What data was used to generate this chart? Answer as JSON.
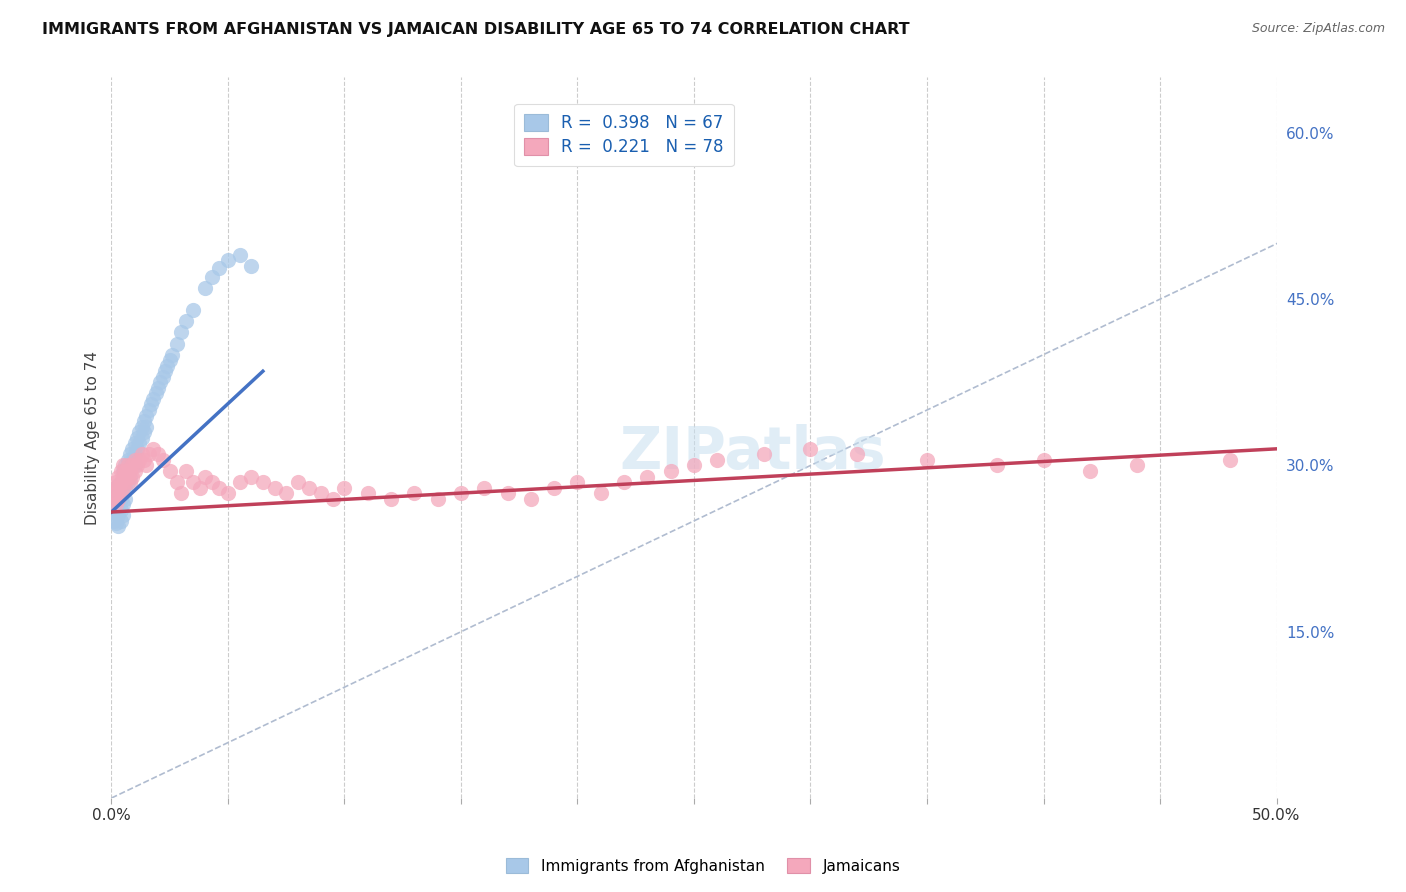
{
  "title": "IMMIGRANTS FROM AFGHANISTAN VS JAMAICAN DISABILITY AGE 65 TO 74 CORRELATION CHART",
  "source": "Source: ZipAtlas.com",
  "ylabel": "Disability Age 65 to 74",
  "xlim": [
    0.0,
    0.5
  ],
  "ylim": [
    0.0,
    0.65
  ],
  "yticks_right": [
    0.15,
    0.3,
    0.45,
    0.6
  ],
  "color_afghanistan": "#a8c8e8",
  "color_jamaican": "#f4a8bc",
  "color_trend_afghanistan": "#4472c4",
  "color_trend_jamaican": "#c0405a",
  "color_diagonal": "#c0c8d8",
  "watermark": "ZIPatlas",
  "afg_x": [
    0.001,
    0.001,
    0.001,
    0.002,
    0.002,
    0.002,
    0.002,
    0.003,
    0.003,
    0.003,
    0.003,
    0.003,
    0.004,
    0.004,
    0.004,
    0.004,
    0.005,
    0.005,
    0.005,
    0.005,
    0.005,
    0.006,
    0.006,
    0.006,
    0.006,
    0.007,
    0.007,
    0.007,
    0.008,
    0.008,
    0.008,
    0.009,
    0.009,
    0.01,
    0.01,
    0.01,
    0.011,
    0.011,
    0.012,
    0.012,
    0.013,
    0.013,
    0.014,
    0.014,
    0.015,
    0.015,
    0.016,
    0.017,
    0.018,
    0.019,
    0.02,
    0.021,
    0.022,
    0.023,
    0.024,
    0.025,
    0.026,
    0.028,
    0.03,
    0.032,
    0.035,
    0.04,
    0.043,
    0.046,
    0.05,
    0.055,
    0.06
  ],
  "afg_y": [
    0.27,
    0.26,
    0.25,
    0.275,
    0.268,
    0.258,
    0.248,
    0.282,
    0.272,
    0.265,
    0.255,
    0.245,
    0.28,
    0.27,
    0.26,
    0.25,
    0.295,
    0.285,
    0.275,
    0.265,
    0.255,
    0.3,
    0.29,
    0.28,
    0.27,
    0.305,
    0.295,
    0.285,
    0.31,
    0.3,
    0.29,
    0.315,
    0.305,
    0.32,
    0.31,
    0.3,
    0.325,
    0.315,
    0.33,
    0.32,
    0.335,
    0.325,
    0.34,
    0.33,
    0.345,
    0.335,
    0.35,
    0.355,
    0.36,
    0.365,
    0.37,
    0.375,
    0.38,
    0.385,
    0.39,
    0.395,
    0.4,
    0.41,
    0.42,
    0.43,
    0.44,
    0.46,
    0.47,
    0.478,
    0.485,
    0.49,
    0.48
  ],
  "jam_x": [
    0.001,
    0.001,
    0.002,
    0.002,
    0.002,
    0.003,
    0.003,
    0.003,
    0.004,
    0.004,
    0.004,
    0.005,
    0.005,
    0.005,
    0.006,
    0.006,
    0.007,
    0.007,
    0.008,
    0.008,
    0.009,
    0.009,
    0.01,
    0.01,
    0.011,
    0.012,
    0.013,
    0.014,
    0.015,
    0.016,
    0.018,
    0.02,
    0.022,
    0.025,
    0.028,
    0.03,
    0.032,
    0.035,
    0.038,
    0.04,
    0.043,
    0.046,
    0.05,
    0.055,
    0.06,
    0.065,
    0.07,
    0.075,
    0.08,
    0.085,
    0.09,
    0.095,
    0.1,
    0.11,
    0.12,
    0.13,
    0.14,
    0.15,
    0.16,
    0.17,
    0.18,
    0.19,
    0.2,
    0.21,
    0.22,
    0.23,
    0.24,
    0.25,
    0.26,
    0.28,
    0.3,
    0.32,
    0.35,
    0.38,
    0.4,
    0.42,
    0.44,
    0.48
  ],
  "jam_y": [
    0.28,
    0.27,
    0.285,
    0.275,
    0.265,
    0.29,
    0.28,
    0.27,
    0.295,
    0.285,
    0.275,
    0.3,
    0.29,
    0.28,
    0.295,
    0.285,
    0.3,
    0.29,
    0.295,
    0.285,
    0.3,
    0.29,
    0.305,
    0.295,
    0.3,
    0.305,
    0.31,
    0.305,
    0.3,
    0.31,
    0.315,
    0.31,
    0.305,
    0.295,
    0.285,
    0.275,
    0.295,
    0.285,
    0.28,
    0.29,
    0.285,
    0.28,
    0.275,
    0.285,
    0.29,
    0.285,
    0.28,
    0.275,
    0.285,
    0.28,
    0.275,
    0.27,
    0.28,
    0.275,
    0.27,
    0.275,
    0.27,
    0.275,
    0.28,
    0.275,
    0.27,
    0.28,
    0.285,
    0.275,
    0.285,
    0.29,
    0.295,
    0.3,
    0.305,
    0.31,
    0.315,
    0.31,
    0.305,
    0.3,
    0.305,
    0.295,
    0.3,
    0.305
  ],
  "afg_trend_x0": 0.0,
  "afg_trend_x1": 0.065,
  "afg_trend_y0": 0.258,
  "afg_trend_y1": 0.385,
  "jam_trend_x0": 0.0,
  "jam_trend_x1": 0.5,
  "jam_trend_y0": 0.258,
  "jam_trend_y1": 0.315
}
